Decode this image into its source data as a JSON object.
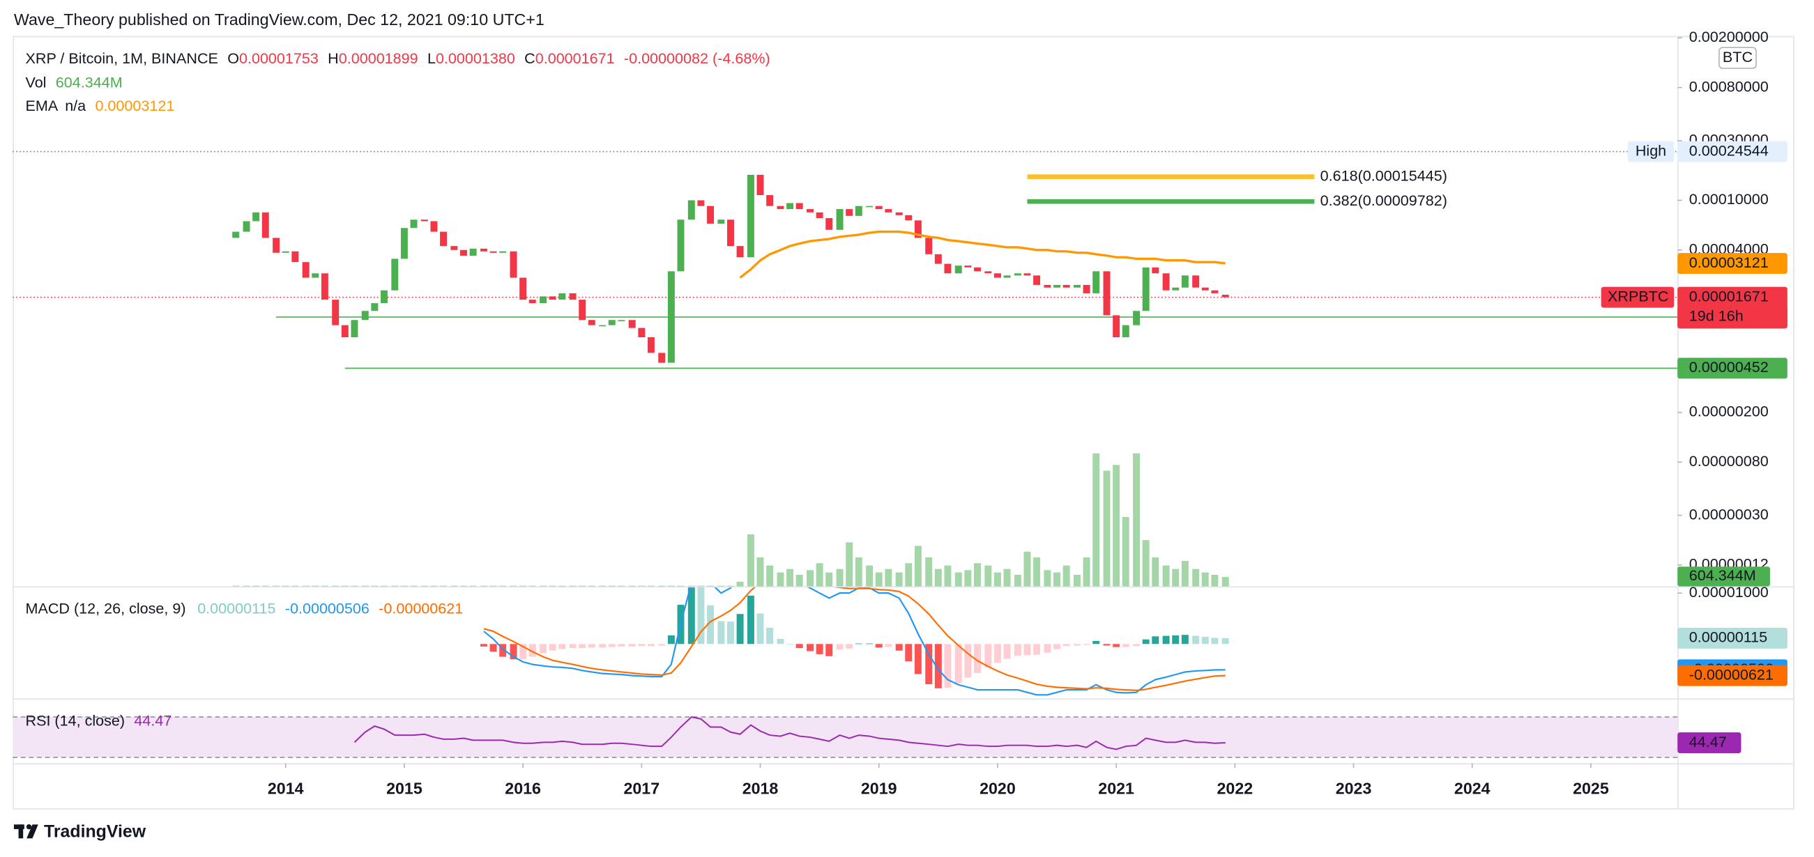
{
  "header": "Wave_Theory published on TradingView.com, Dec 12, 2021 09:10 UTC+1",
  "footer": "TradingView",
  "chart_data": {
    "type": "candlestick",
    "title": "XRP / Bitcoin, 1M, BINANCE",
    "ohlc_labels": [
      {
        "key": "O",
        "text": "0.00001753"
      },
      {
        "key": "H",
        "text": "0.00001899"
      },
      {
        "key": "L",
        "text": "0.00001380"
      },
      {
        "key": "C",
        "text": "0.00001671"
      }
    ],
    "change": "-0.00000082 (-4.68%)",
    "currency": "BTC",
    "symbol_code": "XRPBTC",
    "countdown": "19d 16h",
    "x": [
      2013.58,
      2013.67,
      2013.75,
      2013.83,
      2013.92,
      2014,
      2014.08,
      2014.17,
      2014.25,
      2014.33,
      2014.42,
      2014.5,
      2014.58,
      2014.67,
      2014.75,
      2014.83,
      2014.92,
      2015,
      2015.08,
      2015.17,
      2015.25,
      2015.33,
      2015.42,
      2015.5,
      2015.58,
      2015.67,
      2015.75,
      2015.83,
      2015.92,
      2016,
      2016.08,
      2016.17,
      2016.25,
      2016.33,
      2016.42,
      2016.5,
      2016.58,
      2016.67,
      2016.75,
      2016.83,
      2016.92,
      2017,
      2017.08,
      2017.17,
      2017.25,
      2017.33,
      2017.42,
      2017.5,
      2017.58,
      2017.67,
      2017.75,
      2017.83,
      2017.92,
      2018,
      2018.08,
      2018.17,
      2018.25,
      2018.33,
      2018.42,
      2018.5,
      2018.58,
      2018.67,
      2018.75,
      2018.83,
      2018.92,
      2019,
      2019.08,
      2019.17,
      2019.25,
      2019.33,
      2019.42,
      2019.5,
      2019.58,
      2019.67,
      2019.75,
      2019.83,
      2019.92,
      2020,
      2020.08,
      2020.17,
      2020.25,
      2020.33,
      2020.42,
      2020.5,
      2020.58,
      2020.67,
      2020.75,
      2020.83,
      2020.92,
      2021,
      2021.08,
      2021.17,
      2021.25,
      2021.33,
      2021.42,
      2021.5,
      2021.58,
      2021.67,
      2021.75,
      2021.83,
      2021.92
    ],
    "xlim": [
      2011.7,
      2025.73
    ],
    "xticks": [
      2014,
      2015,
      2016,
      2017,
      2018,
      2019,
      2020,
      2021,
      2022,
      2023,
      2024,
      2025
    ],
    "open": [
      5e-05,
      5.6e-05,
      6.8e-05,
      8e-05,
      5e-05,
      3.8e-05,
      3.9e-05,
      3.2e-05,
      2.4e-05,
      2.6e-05,
      1.6e-05,
      1e-05,
      8e-06,
      1.1e-05,
      1.3e-05,
      1.5e-05,
      1.9e-05,
      3.4e-05,
      6e-05,
      7e-05,
      6.8e-05,
      5.6e-05,
      4.3e-05,
      4e-05,
      3.6e-05,
      4.1e-05,
      3.9e-05,
      3.8e-05,
      3.9e-05,
      2.4e-05,
      1.6e-05,
      1.5e-05,
      1.7e-05,
      1.6e-05,
      1.8e-05,
      1.6e-05,
      1.1e-05,
      1e-05,
      1e-05,
      1.1e-05,
      1.1e-05,
      9.5e-06,
      8e-06,
      6e-06,
      5e-06,
      2.7e-05,
      7e-05,
      0.0001,
      9e-05,
      6.5e-05,
      7e-05,
      4.3e-05,
      3.5e-05,
      0.00016,
      0.00011,
      9e-05,
      8.5e-05,
      9.5e-05,
      8.5e-05,
      8e-05,
      7.2e-05,
      5.8e-05,
      8.5e-05,
      7.5e-05,
      9e-05,
      9e-05,
      8.5e-05,
      8e-05,
      7.6e-05,
      6.9e-05,
      5e-05,
      3.7e-05,
      3.1e-05,
      2.6e-05,
      3e-05,
      2.9e-05,
      2.7e-05,
      2.6e-05,
      2.4e-05,
      2.5e-05,
      2.6e-05,
      2.5e-05,
      2.1e-05,
      2e-05,
      2.1e-05,
      2e-05,
      2.1e-05,
      1.8e-05,
      2.7e-05,
      1.2e-05,
      8e-06,
      1e-05,
      1.3e-05,
      2.9e-05,
      2.6e-05,
      1.9e-05,
      2e-05,
      2.5e-05,
      2e-05,
      1.9e-05,
      1.753e-05
    ],
    "close": [
      5.6e-05,
      6.8e-05,
      8e-05,
      5e-05,
      3.8e-05,
      3.9e-05,
      3.2e-05,
      2.4e-05,
      2.6e-05,
      1.6e-05,
      1e-05,
      8e-06,
      1.1e-05,
      1.3e-05,
      1.5e-05,
      1.9e-05,
      3.4e-05,
      6e-05,
      7e-05,
      6.8e-05,
      5.6e-05,
      4.3e-05,
      4e-05,
      3.6e-05,
      4.1e-05,
      3.9e-05,
      3.8e-05,
      3.9e-05,
      2.4e-05,
      1.6e-05,
      1.5e-05,
      1.7e-05,
      1.6e-05,
      1.8e-05,
      1.6e-05,
      1.1e-05,
      1e-05,
      1e-05,
      1.1e-05,
      1.1e-05,
      9.5e-06,
      8e-06,
      6e-06,
      5e-06,
      2.7e-05,
      7e-05,
      0.0001,
      9e-05,
      6.5e-05,
      7e-05,
      4.3e-05,
      3.5e-05,
      0.00016,
      0.00011,
      9e-05,
      8.5e-05,
      9.5e-05,
      8.5e-05,
      8e-05,
      7.2e-05,
      5.8e-05,
      8.5e-05,
      7.5e-05,
      9e-05,
      9e-05,
      8.5e-05,
      8e-05,
      7.6e-05,
      6.9e-05,
      5e-05,
      3.7e-05,
      3.1e-05,
      2.6e-05,
      3e-05,
      2.9e-05,
      2.7e-05,
      2.6e-05,
      2.4e-05,
      2.5e-05,
      2.6e-05,
      2.5e-05,
      2.1e-05,
      2e-05,
      2.1e-05,
      2e-05,
      2.1e-05,
      1.8e-05,
      2.7e-05,
      1.2e-05,
      8e-06,
      1e-05,
      1.3e-05,
      2.9e-05,
      2.6e-05,
      1.9e-05,
      2e-05,
      2.5e-05,
      2e-05,
      1.9e-05,
      1.8e-05,
      1.671e-05
    ],
    "up_color": "#4caf50",
    "down_color": "#f23645",
    "log_scale": true,
    "ylim": [
      8.1e-08,
      0.00207
    ],
    "yticks": [
      {
        "value": 0.002,
        "label": "0.00200000"
      },
      {
        "value": 0.0008,
        "label": "0.00080000"
      },
      {
        "value": 0.0003,
        "label": "0.00030000"
      },
      {
        "value": 0.0001,
        "label": "0.00010000"
      },
      {
        "value": 4e-05,
        "label": "0.00004000"
      },
      {
        "value": 2e-06,
        "label": "0.00000200"
      },
      {
        "value": 8e-07,
        "label": "0.00000080"
      },
      {
        "value": 3e-07,
        "label": "0.00000030"
      },
      {
        "value": 1.2e-07,
        "label": "0.00000012"
      }
    ],
    "volume": {
      "name": "Vol",
      "value_label": "604.344M",
      "color": "#a5d6a7",
      "tag_color": "#4caf50",
      "ylim": [
        0,
        9000
      ],
      "values": [
        40,
        40,
        40,
        40,
        40,
        40,
        40,
        40,
        40,
        40,
        40,
        40,
        40,
        40,
        40,
        40,
        40,
        40,
        40,
        40,
        40,
        40,
        40,
        40,
        40,
        40,
        40,
        40,
        40,
        40,
        40,
        40,
        40,
        40,
        40,
        40,
        40,
        40,
        40,
        40,
        40,
        40,
        40,
        40,
        40,
        40,
        40,
        40,
        40,
        40,
        40,
        300,
        3375,
        1875,
        1350,
        900,
        1125,
        750,
        1050,
        1500,
        900,
        1125,
        2850,
        1875,
        1350,
        900,
        1125,
        900,
        1500,
        2625,
        1875,
        1125,
        1350,
        900,
        1050,
        1500,
        1350,
        900,
        1125,
        750,
        2250,
        1875,
        1050,
        900,
        1350,
        750,
        1875,
        8625,
        7500,
        7875,
        4500,
        8625,
        3000,
        1875,
        1350,
        1125,
        1650,
        1125,
        900,
        750,
        604.344
      ]
    },
    "ema": {
      "name": "EMA",
      "status": "n/a",
      "color": "#ff9800",
      "values": [
        null,
        null,
        null,
        null,
        null,
        null,
        null,
        null,
        null,
        null,
        null,
        null,
        null,
        null,
        null,
        null,
        null,
        null,
        null,
        null,
        null,
        null,
        null,
        null,
        null,
        null,
        null,
        null,
        null,
        null,
        null,
        null,
        null,
        null,
        null,
        null,
        null,
        null,
        null,
        null,
        null,
        null,
        null,
        null,
        null,
        null,
        null,
        null,
        null,
        null,
        null,
        2.4e-05,
        2.8e-05,
        3.3e-05,
        3.7e-05,
        4e-05,
        4.3e-05,
        4.5e-05,
        4.7e-05,
        4.8e-05,
        4.9e-05,
        5.1e-05,
        5.2e-05,
        5.3e-05,
        5.5e-05,
        5.6e-05,
        5.6e-05,
        5.6e-05,
        5.5e-05,
        5.3e-05,
        5.1e-05,
        5e-05,
        4.8e-05,
        4.7e-05,
        4.6e-05,
        4.5e-05,
        4.4e-05,
        4.3e-05,
        4.2e-05,
        4.2e-05,
        4.1e-05,
        4e-05,
        4e-05,
        3.9e-05,
        3.9e-05,
        3.8e-05,
        3.8e-05,
        3.7e-05,
        3.6e-05,
        3.5e-05,
        3.5e-05,
        3.4e-05,
        3.4e-05,
        3.4e-05,
        3.3e-05,
        3.3e-05,
        3.3e-05,
        3.2e-05,
        3.2e-05,
        3.2e-05,
        3.121e-05
      ]
    },
    "levels": [
      {
        "name": "High",
        "value": 0.00024544,
        "color": "#787b86",
        "line": "dotted",
        "tag_color": "#e3effd",
        "tag_text_color": "#131722"
      },
      {
        "value": 1.161e-05,
        "color": "#4caf50",
        "line": "solid",
        "x_start": 2013.92,
        "tag_color": "#4caf50",
        "tag_text_color": "#ffffff"
      },
      {
        "value": 4.52e-06,
        "color": "#4caf50",
        "line": "solid",
        "x_start": 2014.5,
        "tag_color": "#4caf50",
        "tag_text_color": "#ffffff"
      }
    ],
    "fib": {
      "x": [
        2020.25,
        2022.67
      ],
      "levels": [
        {
          "text": "0.618(0.00015445)",
          "value": 0.00015445,
          "color": "#fbc02d"
        },
        {
          "text": "0.382(0.00009782)",
          "value": 9.782e-05,
          "color": "#4caf50"
        }
      ]
    },
    "macd": {
      "title": "MACD (12, 26, close, 9)",
      "ylim": [
        -1.07e-05,
        1.11e-05
      ],
      "yticks": [
        {
          "value": 1e-05,
          "label": "0.00001000"
        }
      ],
      "hist": {
        "colors": [
          "#26a69a",
          "#b2dfdb",
          "#ff5252",
          "#ffcdd2"
        ],
        "values": [
          null,
          null,
          null,
          null,
          null,
          null,
          null,
          null,
          null,
          null,
          null,
          null,
          null,
          null,
          null,
          null,
          null,
          null,
          null,
          null,
          null,
          null,
          null,
          null,
          null,
          -5e-07,
          -1.5e-06,
          -2.5e-06,
          -3e-06,
          -3e-06,
          -2.5e-06,
          -1.8e-06,
          -1.3e-06,
          -1e-06,
          -8e-07,
          -8e-07,
          -7e-07,
          -7e-07,
          -6e-07,
          -5e-07,
          -5e-07,
          -4e-07,
          -4e-07,
          -3e-07,
          1.7e-06,
          7.7e-06,
          1.25e-05,
          1.16e-05,
          7.6e-06,
          4.5e-06,
          4.4e-06,
          5.9e-06,
          9.5e-06,
          6e-06,
          3.2e-06,
          1e-06,
          0,
          -8e-07,
          -1.4e-06,
          -2e-06,
          -2.4e-06,
          -1.1e-06,
          -9e-07,
          1e-07,
          1e-07,
          -7e-07,
          -6e-07,
          -1.3e-06,
          -3.4e-06,
          -5.9e-06,
          -7.9e-06,
          -8.7e-06,
          -8.6e-06,
          -7.7e-06,
          -6.6e-06,
          -5.7e-06,
          -4.6e-06,
          -3.7e-06,
          -2.9e-06,
          -2.3e-06,
          -2.2e-06,
          -2.1e-06,
          -1.7e-06,
          -1e-06,
          -4e-07,
          -3e-07,
          -2e-07,
          6e-07,
          -3e-07,
          -6e-07,
          -6e-07,
          -4e-07,
          9e-07,
          1.5e-06,
          1.6e-06,
          1.7e-06,
          1.8e-06,
          1.6e-06,
          1.4e-06,
          1.2e-06,
          1.15e-06
        ]
      },
      "macd": {
        "color": "#2196f3",
        "values": [
          null,
          null,
          null,
          null,
          null,
          null,
          null,
          null,
          null,
          null,
          null,
          null,
          null,
          null,
          null,
          null,
          null,
          null,
          null,
          null,
          null,
          null,
          null,
          null,
          null,
          2.5e-06,
          1e-06,
          -1e-06,
          -2.5e-06,
          -3.5e-06,
          -4e-06,
          -4.3e-06,
          -4.5e-06,
          -4.6e-06,
          -4.8e-06,
          -5.2e-06,
          -5.5e-06,
          -5.8e-06,
          -5.9e-06,
          -6e-06,
          -6.2e-06,
          -6.3e-06,
          -6.4e-06,
          -6.4e-06,
          -4e-06,
          4e-06,
          1.2e-05,
          1.4e-05,
          1.2e-05,
          1e-05,
          1.1e-05,
          1.4e-05,
          2e-05,
          1.8e-05,
          1.6e-05,
          1.4e-05,
          1.3e-05,
          1.2e-05,
          1.1e-05,
          1e-05,
          9e-06,
          1e-05,
          1e-05,
          1.1e-05,
          1.1e-05,
          1e-05,
          1e-05,
          9e-06,
          6e-06,
          2e-06,
          -2e-06,
          -5e-06,
          -7e-06,
          -8e-06,
          -8.5e-06,
          -9e-06,
          -9e-06,
          -9e-06,
          -9e-06,
          -9e-06,
          -9.5e-06,
          -1e-05,
          -1e-05,
          -9.5e-06,
          -9e-06,
          -9e-06,
          -9e-06,
          -8e-06,
          -9e-06,
          -9.5e-06,
          -9.6e-06,
          -9.5e-06,
          -8e-06,
          -7e-06,
          -6.5e-06,
          -6e-06,
          -5.5e-06,
          -5.3e-06,
          -5.2e-06,
          -5.1e-06,
          -5.06e-06
        ]
      },
      "signal": {
        "color": "#ff6d00",
        "values": [
          null,
          null,
          null,
          null,
          null,
          null,
          null,
          null,
          null,
          null,
          null,
          null,
          null,
          null,
          null,
          null,
          null,
          null,
          null,
          null,
          null,
          null,
          null,
          null,
          null,
          3e-06,
          2.5e-06,
          1.5e-06,
          5e-07,
          -5e-07,
          -1.5e-06,
          -2.5e-06,
          -3.2e-06,
          -3.6e-06,
          -4e-06,
          -4.4e-06,
          -4.8e-06,
          -5.1e-06,
          -5.3e-06,
          -5.5e-06,
          -5.7e-06,
          -5.9e-06,
          -6e-06,
          -6.1e-06,
          -5.7e-06,
          -3.7e-06,
          -5e-07,
          2.4e-06,
          4.4e-06,
          5.5e-06,
          6.6e-06,
          8.1e-06,
          1.05e-05,
          1.2e-05,
          1.28e-05,
          1.3e-05,
          1.3e-05,
          1.28e-05,
          1.24e-05,
          1.2e-05,
          1.14e-05,
          1.11e-05,
          1.09e-05,
          1.09e-05,
          1.09e-05,
          1.07e-05,
          1.06e-05,
          1.03e-05,
          9.4e-06,
          7.9e-06,
          5.9e-06,
          3.7e-06,
          1.6e-06,
          -3e-07,
          -1.9e-06,
          -3.3e-06,
          -4.4e-06,
          -5.3e-06,
          -6.1e-06,
          -6.7e-06,
          -7.3e-06,
          -7.9e-06,
          -8.3e-06,
          -8.5e-06,
          -8.6e-06,
          -8.7e-06,
          -8.8e-06,
          -8.6e-06,
          -8.7e-06,
          -8.9e-06,
          -9e-06,
          -9.1e-06,
          -8.9e-06,
          -8.5e-06,
          -8.1e-06,
          -7.7e-06,
          -7.3e-06,
          -6.9e-06,
          -6.6e-06,
          -6.3e-06,
          -6.21e-06
        ]
      }
    },
    "rsi": {
      "title": "RSI (14, close)",
      "color": "#9c27b0",
      "ylim": [
        24.3,
        87.1
      ],
      "band": [
        30,
        70
      ],
      "band_color": "#f3e5f5",
      "values": [
        null,
        null,
        null,
        null,
        null,
        null,
        null,
        null,
        null,
        null,
        null,
        null,
        45,
        55,
        61,
        58,
        52,
        52,
        52,
        53,
        50,
        48,
        48,
        49,
        47,
        47,
        47,
        47,
        45,
        44,
        44,
        45,
        45,
        46,
        45,
        43,
        43,
        43,
        44,
        44,
        43,
        42,
        41,
        41,
        50,
        60,
        70,
        68,
        60,
        60,
        55,
        53,
        62,
        56,
        52,
        51,
        54,
        51,
        50,
        48,
        46,
        52,
        49,
        52,
        51,
        49,
        48,
        47,
        45,
        44,
        43,
        42,
        41,
        43,
        42,
        42,
        41,
        41,
        42,
        42,
        42,
        41,
        41,
        42,
        41,
        42,
        40,
        46,
        40,
        38,
        41,
        42,
        49,
        47,
        45,
        45,
        47,
        45,
        45,
        44,
        44.47
      ]
    }
  }
}
